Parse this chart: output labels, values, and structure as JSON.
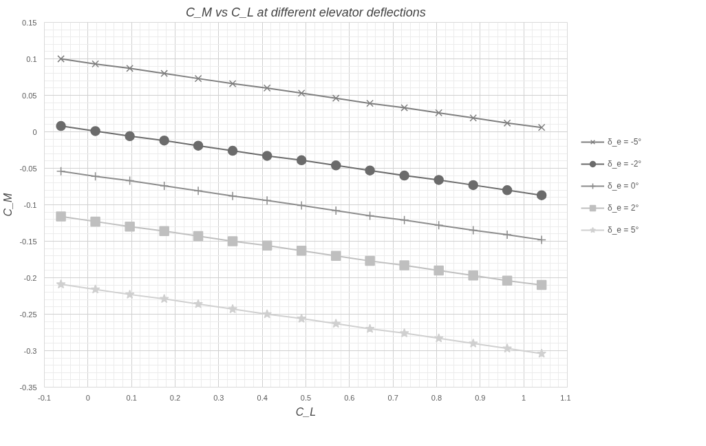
{
  "chart_data": {
    "type": "line",
    "title": "C_M vs C_L at different elevator deflections",
    "xlabel": "C_L",
    "ylabel": "C_M",
    "x": [
      -0.062,
      0.017,
      0.096,
      0.175,
      0.253,
      0.332,
      0.411,
      0.49,
      0.569,
      0.647,
      0.726,
      0.805,
      0.884,
      0.962,
      1.041
    ],
    "xlim": [
      -0.1,
      1.1
    ],
    "xticks": [
      -0.1,
      0,
      0.1,
      0.2,
      0.3,
      0.4,
      0.5,
      0.6,
      0.7,
      0.8,
      0.9,
      1,
      1.1
    ],
    "ylim": [
      -0.35,
      0.15
    ],
    "yticks": [
      -0.35,
      -0.3,
      -0.25,
      -0.2,
      -0.15,
      -0.1,
      -0.05,
      0,
      0.05,
      0.1,
      0.15
    ],
    "grid": true,
    "legend": "right",
    "series": [
      {
        "name": "δ_e = -5°",
        "color": "#7f7f7f",
        "marker": "x",
        "values": [
          0.1,
          0.093,
          0.087,
          0.08,
          0.073,
          0.066,
          0.06,
          0.053,
          0.046,
          0.039,
          0.033,
          0.026,
          0.019,
          0.012,
          0.006
        ]
      },
      {
        "name": "δ_e = -2°",
        "color": "#6b6b6b",
        "marker": "circle",
        "values": [
          0.008,
          0.001,
          -0.006,
          -0.012,
          -0.019,
          -0.026,
          -0.033,
          -0.039,
          -0.046,
          -0.053,
          -0.06,
          -0.066,
          -0.073,
          -0.08,
          -0.087
        ]
      },
      {
        "name": "δ_e = 0°",
        "color": "#8c8c8c",
        "marker": "cross",
        "values": [
          -0.054,
          -0.061,
          -0.067,
          -0.074,
          -0.081,
          -0.088,
          -0.094,
          -0.101,
          -0.108,
          -0.115,
          -0.121,
          -0.128,
          -0.135,
          -0.141,
          -0.148
        ]
      },
      {
        "name": "δ_e = 2°",
        "color": "#bfbfbf",
        "marker": "square",
        "values": [
          -0.116,
          -0.123,
          -0.13,
          -0.136,
          -0.143,
          -0.15,
          -0.156,
          -0.163,
          -0.17,
          -0.177,
          -0.183,
          -0.19,
          -0.197,
          -0.204,
          -0.21
        ]
      },
      {
        "name": "δ_e = 5°",
        "color": "#d0d0d0",
        "marker": "star",
        "values": [
          -0.209,
          -0.216,
          -0.223,
          -0.229,
          -0.236,
          -0.243,
          -0.25,
          -0.256,
          -0.263,
          -0.27,
          -0.276,
          -0.283,
          -0.29,
          -0.297,
          -0.304
        ]
      }
    ]
  }
}
